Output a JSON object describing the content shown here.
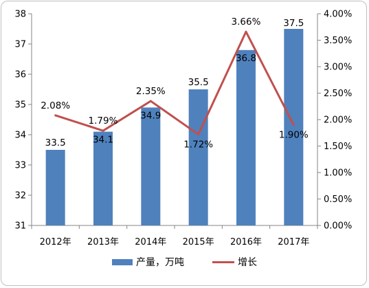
{
  "chart_data": {
    "type": "bar+line",
    "categories": [
      "2012年",
      "2013年",
      "2014年",
      "2015年",
      "2016年",
      "2017年"
    ],
    "series": [
      {
        "name": "产量，万吨",
        "type": "bar",
        "axis": "left",
        "color": "#4f81bd",
        "values": [
          33.5,
          34.1,
          34.9,
          35.5,
          36.8,
          37.5
        ],
        "labels": [
          "33.5",
          "34.1",
          "34.9",
          "35.5",
          "36.8",
          "37.5"
        ]
      },
      {
        "name": "增长",
        "type": "line",
        "axis": "right",
        "color": "#c0504d",
        "values": [
          2.08,
          1.79,
          2.35,
          1.72,
          3.66,
          1.9
        ],
        "labels": [
          "2.08%",
          "1.79%",
          "2.35%",
          "1.72%",
          "3.66%",
          "1.90%"
        ]
      }
    ],
    "y_left": {
      "min": 31,
      "max": 38,
      "ticks": [
        "31",
        "32",
        "33",
        "34",
        "35",
        "36",
        "37",
        "38"
      ]
    },
    "y_right": {
      "min": 0,
      "max": 4,
      "ticks": [
        "0.00%",
        "0.50%",
        "1.00%",
        "1.50%",
        "2.00%",
        "2.50%",
        "3.00%",
        "3.50%",
        "4.00%"
      ]
    },
    "grid": false,
    "legend": "bottom",
    "title": "",
    "xlabel": "",
    "ylabel": ""
  }
}
